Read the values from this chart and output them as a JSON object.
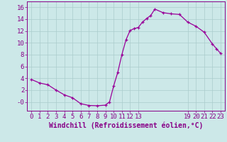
{
  "x_all": [
    0,
    1,
    2,
    3,
    4,
    5,
    6,
    7,
    8,
    9,
    9.5,
    10,
    10.5,
    11,
    11.5,
    12,
    12.5,
    13,
    13.5,
    14,
    14.5,
    15,
    16,
    17,
    18,
    19,
    20,
    21,
    22,
    22.5,
    23
  ],
  "y_all": [
    3.8,
    3.2,
    2.9,
    2.0,
    1.2,
    0.7,
    -0.3,
    -0.6,
    -0.65,
    -0.55,
    0.0,
    2.7,
    5.0,
    8.0,
    10.5,
    12.1,
    12.4,
    12.6,
    13.5,
    14.1,
    14.6,
    15.7,
    15.1,
    14.9,
    14.8,
    13.5,
    12.8,
    11.8,
    9.8,
    9.0,
    8.2
  ],
  "line_color": "#990099",
  "marker_color": "#990099",
  "bg_color": "#cce8e8",
  "grid_color": "#aacccc",
  "xlabel": "Windchill (Refroidissement éolien,°C)",
  "xlim": [
    -0.5,
    23.5
  ],
  "ylim": [
    -1.5,
    17.0
  ],
  "yticks": [
    0,
    2,
    4,
    6,
    8,
    10,
    12,
    14,
    16
  ],
  "ytick_labels": [
    "-0",
    "2",
    "4",
    "6",
    "8",
    "10",
    "12",
    "14",
    "16"
  ],
  "xticks": [
    0,
    1,
    2,
    3,
    4,
    5,
    6,
    7,
    8,
    9,
    10,
    11,
    12,
    13,
    19,
    20,
    21,
    22,
    23
  ],
  "title_color": "#880088",
  "tick_fontsize": 6.5,
  "label_fontsize": 7.0,
  "linewidth": 0.9,
  "markersize": 3.5
}
